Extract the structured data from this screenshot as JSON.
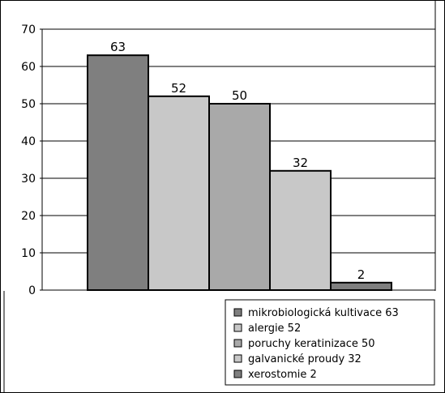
{
  "chart_data": {
    "type": "bar",
    "title": "",
    "xlabel": "",
    "ylabel": "",
    "ylim": [
      0,
      70
    ],
    "yticks": [
      0,
      10,
      20,
      30,
      40,
      50,
      60,
      70
    ],
    "grid": true,
    "legend_position": "bottom-right",
    "categories": [
      "mikrobiologická kultivace 63",
      "alergie 52",
      "poruchy keratinizace 50",
      "galvanické proudy 32",
      "xerostomie 2"
    ],
    "values": [
      63,
      52,
      50,
      32,
      2
    ],
    "bar_colors": [
      "#7f7f7f",
      "#c8c8c8",
      "#a9a9a9",
      "#c8c8c8",
      "#7f7f7f"
    ]
  }
}
